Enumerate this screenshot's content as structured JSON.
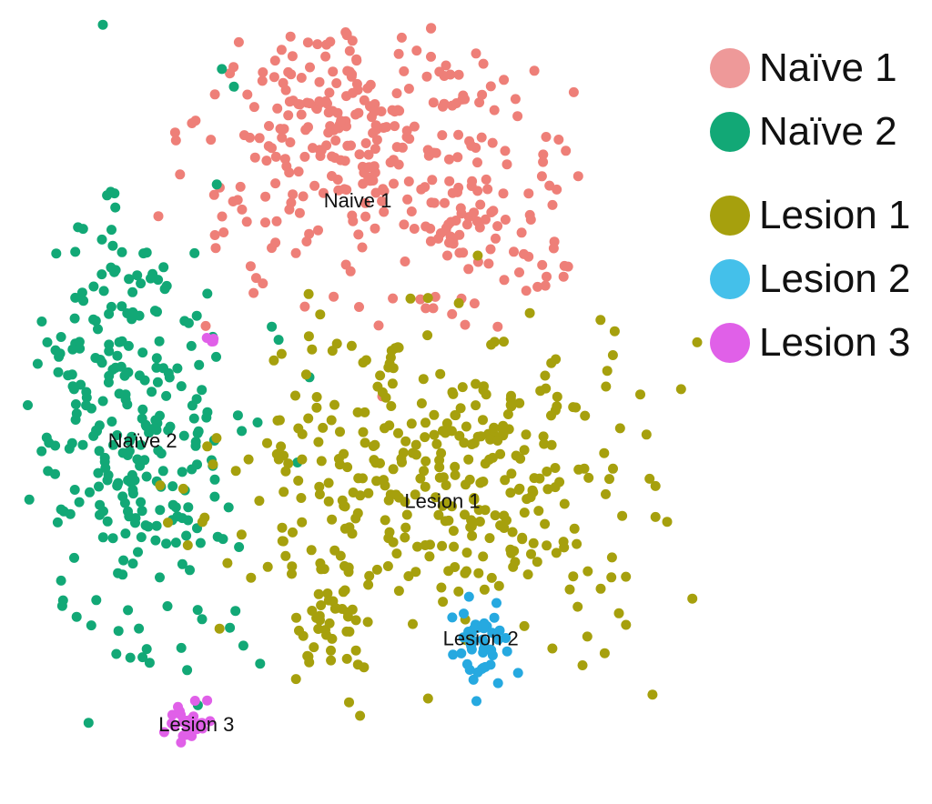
{
  "chart_data": {
    "type": "scatter",
    "title": "",
    "xlabel": "",
    "ylabel": "",
    "xlim": [
      -45,
      45
    ],
    "ylim": [
      -45,
      45
    ],
    "grid": false,
    "legend_placement": "top-right",
    "series": [
      {
        "name": "Naïve 1",
        "color": "#EE7F78",
        "label": "Naive 1",
        "label_pos": [
          -2,
          23
        ],
        "blobs": [
          {
            "c": [
              -2,
              28
            ],
            "s": [
              11,
              9
            ],
            "n": 240
          },
          {
            "c": [
              13,
              22
            ],
            "s": [
              6,
              7
            ],
            "n": 90
          },
          {
            "c": [
              -7,
              37
            ],
            "s": [
              4,
              4
            ],
            "n": 40
          }
        ]
      },
      {
        "name": "Naïve 2",
        "color": "#12A876",
        "label": "Naïve 2",
        "label_pos": [
          -30,
          -5
        ],
        "blobs": [
          {
            "c": [
              -33,
              -2
            ],
            "s": [
              6,
              14
            ],
            "n": 230
          },
          {
            "c": [
              -24,
              -6
            ],
            "s": [
              5,
              10
            ],
            "n": 60
          }
        ]
      },
      {
        "name": "Lesion 1",
        "color": "#A6A00D",
        "label": "Lesion 1",
        "label_pos": [
          9,
          -12
        ],
        "blobs": [
          {
            "c": [
              10,
              -8
            ],
            "s": [
              13,
              9
            ],
            "n": 380
          },
          {
            "c": [
              -6,
              -26
            ],
            "s": [
              2,
              4
            ],
            "n": 40
          }
        ]
      },
      {
        "name": "Lesion 2",
        "color": "#26A9E0",
        "label": "Lesion 2",
        "label_pos": [
          14,
          -28
        ],
        "blobs": [
          {
            "c": [
              14,
              -28
            ],
            "s": [
              2,
              2.5
            ],
            "n": 45
          }
        ]
      },
      {
        "name": "Lesion 3",
        "color": "#E060E8",
        "label": "Lesion 3",
        "label_pos": [
          -23,
          -38
        ],
        "blobs": [
          {
            "c": [
              -24,
              -37
            ],
            "s": [
              1.6,
              1.2
            ],
            "n": 30
          },
          {
            "c": [
              -21,
              8
            ],
            "s": [
              0.5,
              0.5
            ],
            "n": 4
          }
        ]
      }
    ]
  },
  "legend": {
    "items": [
      {
        "label": "Naïve 1",
        "color": "#EE9999"
      },
      {
        "label": "Naïve 2",
        "color": "#12A876"
      },
      {
        "label": "Lesion 1",
        "color": "#A6A00D"
      },
      {
        "label": "Lesion 2",
        "color": "#44C0EA"
      },
      {
        "label": "Lesion 3",
        "color": "#E060E8"
      }
    ]
  }
}
